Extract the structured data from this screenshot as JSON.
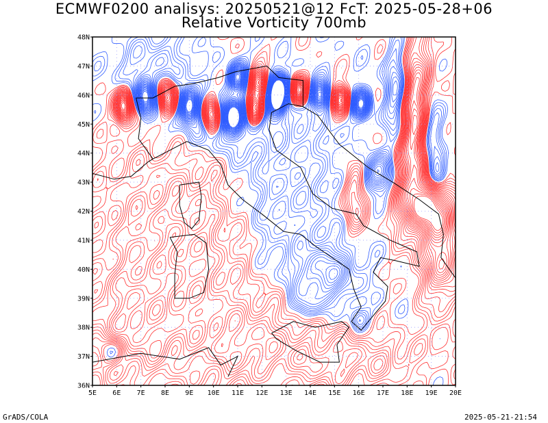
{
  "title_line1": "ECMWF0200 analisys: 20250521@12 FcT: 2025-05-28+06",
  "title_line2": "Relative Vorticity 700mb",
  "footer_left": "GrADS/COLA",
  "footer_right": "2025-05-21-21:54",
  "lat_labels": [
    "48N",
    "47N",
    "46N",
    "45N",
    "44N",
    "43N",
    "42N",
    "41N",
    "40N",
    "39N",
    "38N",
    "37N",
    "36N"
  ],
  "lon_labels": [
    "5E",
    "6E",
    "7E",
    "8E",
    "9E",
    "10E",
    "11E",
    "12E",
    "13E",
    "14E",
    "15E",
    "16E",
    "17E",
    "18E",
    "19E",
    "20E"
  ],
  "colors": {
    "positive": "#ff3030",
    "negative": "#2f5cff",
    "coast": "#000000",
    "grid": "#9a9aff"
  }
}
